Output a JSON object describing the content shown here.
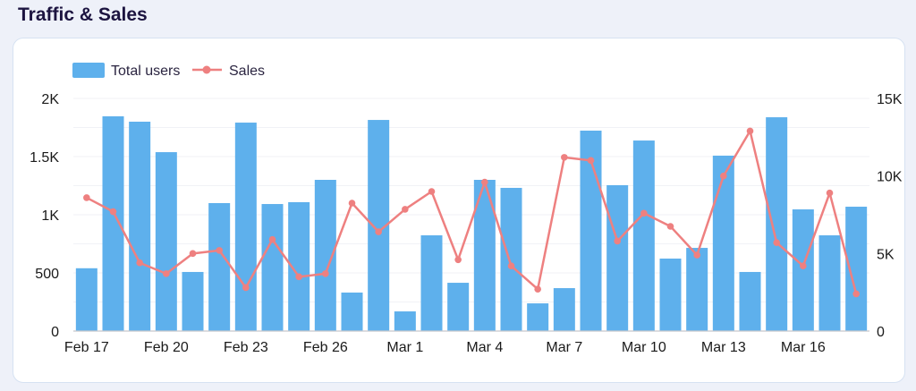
{
  "title": "Traffic & Sales",
  "chart_data": {
    "type": "bar+line",
    "legend_position": "top-left",
    "categories": [
      "Feb 17",
      "Feb 18",
      "Feb 19",
      "Feb 20",
      "Feb 21",
      "Feb 22",
      "Feb 23",
      "Feb 24",
      "Feb 25",
      "Feb 26",
      "Feb 27",
      "Feb 28",
      "Mar 1",
      "Mar 2",
      "Mar 3",
      "Mar 4",
      "Mar 5",
      "Mar 6",
      "Mar 7",
      "Mar 8",
      "Mar 9",
      "Mar 10",
      "Mar 11",
      "Mar 12",
      "Mar 13",
      "Mar 14",
      "Mar 15",
      "Mar 16",
      "Mar 17",
      "Mar 18"
    ],
    "x_tick_labels": [
      "Feb 17",
      "Feb 20",
      "Feb 23",
      "Feb 26",
      "Mar 1",
      "Mar 4",
      "Mar 7",
      "Mar 10",
      "Mar 13",
      "Mar 16"
    ],
    "series": [
      {
        "name": "Total users",
        "type": "bar",
        "axis": "left",
        "color": "#5eb0ec",
        "values": [
          540,
          1846,
          1800,
          1538,
          508,
          1100,
          1792,
          1092,
          1108,
          1300,
          331,
          1815,
          169,
          823,
          415,
          1300,
          1231,
          238,
          369,
          1723,
          1254,
          1638,
          623,
          715,
          1508,
          508,
          1838,
          1046,
          823,
          1069
        ]
      },
      {
        "name": "Sales",
        "type": "line",
        "axis": "right",
        "color": "#ee8080",
        "values": [
          8600,
          7700,
          4400,
          3700,
          5000,
          5200,
          2800,
          5900,
          3500,
          3700,
          8250,
          6400,
          7850,
          9000,
          4600,
          9600,
          4200,
          2700,
          11200,
          11000,
          5800,
          7600,
          6750,
          4900,
          10000,
          12900,
          5700,
          4200,
          8900,
          2400
        ]
      }
    ],
    "y_left": {
      "range": [
        0,
        2000
      ],
      "ticks": [
        0,
        500,
        1000,
        1500,
        2000
      ],
      "tick_labels": [
        "0",
        "500",
        "1K",
        "1.5K",
        "2K"
      ]
    },
    "y_right": {
      "range": [
        0,
        15000
      ],
      "ticks": [
        0,
        5000,
        10000,
        15000
      ],
      "tick_labels": [
        "0",
        "5K",
        "10K",
        "15K"
      ]
    },
    "grid": true
  }
}
